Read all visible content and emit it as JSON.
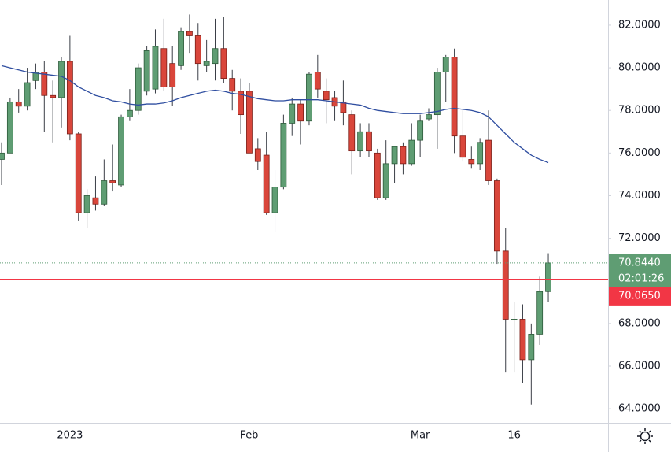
{
  "chart_data": {
    "type": "candlestick",
    "categories": [
      null,
      null,
      null,
      null,
      null,
      null,
      null,
      null,
      "2023",
      null,
      null,
      null,
      null,
      null,
      null,
      null,
      null,
      null,
      null,
      null,
      null,
      null,
      null,
      null,
      null,
      null,
      null,
      null,
      null,
      "Feb",
      null,
      null,
      null,
      null,
      null,
      null,
      null,
      null,
      null,
      null,
      null,
      null,
      null,
      null,
      null,
      null,
      null,
      null,
      null,
      "Mar",
      null,
      null,
      null,
      null,
      null,
      null,
      null,
      null,
      null,
      null,
      "16",
      null,
      null,
      null,
      null
    ],
    "open": [
      75.7,
      76.0,
      78.4,
      78.2,
      79.4,
      79.8,
      78.7,
      78.6,
      80.3,
      76.9,
      73.2,
      73.9,
      73.6,
      74.7,
      74.5,
      77.7,
      78.0,
      78.9,
      79.0,
      80.9,
      80.2,
      80.1,
      81.7,
      81.5,
      80.1,
      80.2,
      80.9,
      79.5,
      78.9,
      78.9,
      76.2,
      75.9,
      73.2,
      74.4,
      77.4,
      78.3,
      77.5,
      79.8,
      78.9,
      78.6,
      78.4,
      77.8,
      76.1,
      77.0,
      76.0,
      73.9,
      75.5,
      76.3,
      75.5,
      76.6,
      77.6,
      77.8,
      79.8,
      80.5,
      76.8,
      75.7,
      75.5,
      76.6,
      74.7,
      71.4,
      68.2,
      68.2,
      66.3,
      67.5,
      69.5
    ],
    "high": [
      76.5,
      78.6,
      79.0,
      80.0,
      80.2,
      80.3,
      79.4,
      80.5,
      81.5,
      77.0,
      74.3,
      74.9,
      75.7,
      76.4,
      77.8,
      79.0,
      80.2,
      81.0,
      81.8,
      82.3,
      81.0,
      81.9,
      82.5,
      82.1,
      81.3,
      82.3,
      82.4,
      79.9,
      79.5,
      79.3,
      76.7,
      77.0,
      75.2,
      77.8,
      78.6,
      78.5,
      79.8,
      80.6,
      79.5,
      78.9,
      79.4,
      78.0,
      77.4,
      77.4,
      76.2,
      76.6,
      76.3,
      76.5,
      77.4,
      77.8,
      78.1,
      80.0,
      80.6,
      80.9,
      78.0,
      76.3,
      76.7,
      78.0,
      74.8,
      72.5,
      69.0,
      68.9,
      68.0,
      70.2,
      71.3
    ],
    "low": [
      74.5,
      76.0,
      77.9,
      78.0,
      79.0,
      77.0,
      76.5,
      77.2,
      76.6,
      72.8,
      72.5,
      73.3,
      73.5,
      74.2,
      74.4,
      77.5,
      77.8,
      78.7,
      78.8,
      78.9,
      78.2,
      79.9,
      80.7,
      79.4,
      79.8,
      79.4,
      79.3,
      78.0,
      76.9,
      76.0,
      75.2,
      73.1,
      72.3,
      74.3,
      76.8,
      76.4,
      77.3,
      78.6,
      77.4,
      77.5,
      77.3,
      75.0,
      75.8,
      75.8,
      73.8,
      73.8,
      74.6,
      75.0,
      75.4,
      75.8,
      77.5,
      76.2,
      78.4,
      76.0,
      75.6,
      75.3,
      75.2,
      74.5,
      70.8,
      65.7,
      65.7,
      65.2,
      64.2,
      67.0,
      69.0
    ],
    "close": [
      76.0,
      78.4,
      78.2,
      79.3,
      79.8,
      78.7,
      78.6,
      80.3,
      76.9,
      73.2,
      74.0,
      73.6,
      74.7,
      74.6,
      77.7,
      78.0,
      80.0,
      80.8,
      81.0,
      79.1,
      79.1,
      81.7,
      81.5,
      80.2,
      80.3,
      80.9,
      79.5,
      78.9,
      77.8,
      76.0,
      75.6,
      73.2,
      74.4,
      77.4,
      78.3,
      77.5,
      79.7,
      79.0,
      78.5,
      78.2,
      77.9,
      76.1,
      77.0,
      76.1,
      73.9,
      75.5,
      76.3,
      75.5,
      76.6,
      77.5,
      77.8,
      79.8,
      80.5,
      76.8,
      75.8,
      75.5,
      76.5,
      74.7,
      71.4,
      68.2,
      68.2,
      66.3,
      67.5,
      69.5,
      70.844
    ],
    "up_color": "#5f9d73",
    "down_color": "#d9463b",
    "ma": {
      "color": "#2f4ea0",
      "values": [
        80.1,
        80.0,
        79.9,
        79.8,
        79.75,
        79.7,
        79.65,
        79.6,
        79.4,
        79.1,
        78.9,
        78.7,
        78.6,
        78.45,
        78.4,
        78.3,
        78.25,
        78.3,
        78.3,
        78.35,
        78.45,
        78.6,
        78.7,
        78.8,
        78.9,
        78.95,
        78.9,
        78.8,
        78.75,
        78.65,
        78.55,
        78.5,
        78.45,
        78.45,
        78.5,
        78.5,
        78.5,
        78.5,
        78.45,
        78.4,
        78.35,
        78.3,
        78.25,
        78.1,
        78.0,
        77.95,
        77.9,
        77.85,
        77.85,
        77.85,
        77.9,
        77.95,
        78.05,
        78.1,
        78.05,
        78.0,
        77.9,
        77.7,
        77.3,
        76.9,
        76.5,
        76.2,
        75.9,
        75.7,
        75.55
      ]
    },
    "ylim": [
      63.34,
      83.18
    ],
    "yticks": [
      {
        "value": 64,
        "label": "64.0000"
      },
      {
        "value": 66,
        "label": "66.0000"
      },
      {
        "value": 68,
        "label": "68.0000"
      },
      {
        "value": 70,
        "label": "70.0000"
      },
      {
        "value": 72,
        "label": "72.0000"
      },
      {
        "value": 74,
        "label": "74.0000"
      },
      {
        "value": 76,
        "label": "76.0000"
      },
      {
        "value": 78,
        "label": "78.0000"
      },
      {
        "value": 80,
        "label": "80.0000"
      },
      {
        "value": 82,
        "label": "82.0000"
      }
    ],
    "last_price": {
      "value": 70.844,
      "label": "70.8440",
      "color": "#5f9d73"
    },
    "countdown": "02:01:26",
    "alert_line": {
      "value": 70.065,
      "label": "70.0650",
      "color": "#f23645"
    }
  }
}
